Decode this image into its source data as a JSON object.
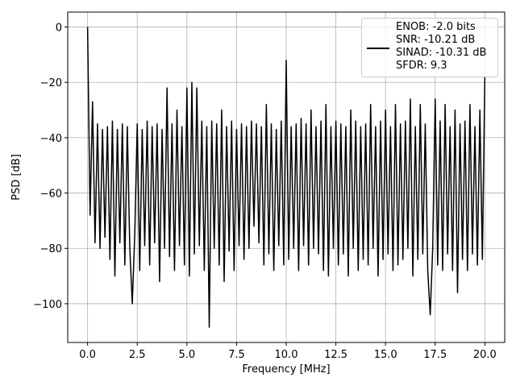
{
  "chart_data": {
    "type": "line",
    "xlabel": "Frequency [MHz]",
    "ylabel": "PSD [dB]",
    "xlim": [
      -1,
      21
    ],
    "ylim": [
      -114,
      5.4
    ],
    "xticks": [
      {
        "value": 0,
        "label": "0.0"
      },
      {
        "value": 2.5,
        "label": "2.5"
      },
      {
        "value": 5,
        "label": "5.0"
      },
      {
        "value": 7.5,
        "label": "7.5"
      },
      {
        "value": 10,
        "label": "10.0"
      },
      {
        "value": 12.5,
        "label": "12.5"
      },
      {
        "value": 15,
        "label": "15.0"
      },
      {
        "value": 17.5,
        "label": "17.5"
      },
      {
        "value": 20,
        "label": "20.0"
      }
    ],
    "yticks": [
      {
        "value": -100,
        "label": "−100"
      },
      {
        "value": -80,
        "label": "−80"
      },
      {
        "value": -60,
        "label": "−60"
      },
      {
        "value": -40,
        "label": "−40"
      },
      {
        "value": -20,
        "label": "−20"
      },
      0
    ],
    "grid": true,
    "legend": "upper right",
    "x": [
      0,
      0.125,
      0.25,
      0.375,
      0.5,
      0.625,
      0.75,
      0.875,
      1,
      1.125,
      1.25,
      1.375,
      1.5,
      1.625,
      1.75,
      1.875,
      2,
      2.125,
      2.25,
      2.375,
      2.5,
      2.625,
      2.75,
      2.875,
      3,
      3.125,
      3.25,
      3.375,
      3.5,
      3.625,
      3.75,
      3.875,
      4,
      4.125,
      4.25,
      4.375,
      4.5,
      4.625,
      4.75,
      4.875,
      5,
      5.125,
      5.25,
      5.375,
      5.5,
      5.625,
      5.75,
      5.875,
      6,
      6.125,
      6.25,
      6.375,
      6.5,
      6.625,
      6.75,
      6.875,
      7,
      7.125,
      7.25,
      7.375,
      7.5,
      7.625,
      7.75,
      7.875,
      8,
      8.125,
      8.25,
      8.375,
      8.5,
      8.625,
      8.75,
      8.875,
      9,
      9.125,
      9.25,
      9.375,
      9.5,
      9.625,
      9.75,
      9.875,
      10,
      10.125,
      10.25,
      10.375,
      10.5,
      10.625,
      10.75,
      10.875,
      11,
      11.125,
      11.25,
      11.375,
      11.5,
      11.625,
      11.75,
      11.875,
      12,
      12.125,
      12.25,
      12.375,
      12.5,
      12.625,
      12.75,
      12.875,
      13,
      13.125,
      13.25,
      13.375,
      13.5,
      13.625,
      13.75,
      13.875,
      14,
      14.125,
      14.25,
      14.375,
      14.5,
      14.625,
      14.75,
      14.875,
      15,
      15.125,
      15.25,
      15.375,
      15.5,
      15.625,
      15.75,
      15.875,
      16,
      16.125,
      16.25,
      16.375,
      16.5,
      16.625,
      16.75,
      16.875,
      17,
      17.125,
      17.25,
      17.375,
      17.5,
      17.625,
      17.75,
      17.875,
      18,
      18.125,
      18.25,
      18.375,
      18.5,
      18.625,
      18.75,
      18.875,
      19,
      19.125,
      19.25,
      19.375,
      19.5,
      19.625,
      19.75,
      19.875,
      20
    ],
    "series": [
      {
        "name": "ENOB: -2.0 bits\nSNR: -10.21 dB\nSINAD: -10.31 dB\nSFDR: 9.3",
        "color": "#000000",
        "values": [
          0,
          -68,
          -27,
          -78,
          -35,
          -80,
          -37,
          -76,
          -36,
          -84,
          -34,
          -90,
          -37,
          -78,
          -35,
          -86,
          -36,
          -80,
          -100,
          -75,
          -35,
          -88,
          -37,
          -79,
          -34,
          -86,
          -36,
          -78,
          -35,
          -92,
          -37,
          -80,
          -22,
          -83,
          -35,
          -88,
          -30,
          -79,
          -36,
          -86,
          -22,
          -90,
          -20,
          -82,
          -22,
          -79,
          -34,
          -88,
          -36,
          -108.5,
          -34,
          -80,
          -35,
          -86,
          -30,
          -92,
          -36,
          -81,
          -34,
          -88,
          -37,
          -79,
          -35,
          -84,
          -36,
          -80,
          -34,
          -72,
          -35,
          -78,
          -36,
          -86,
          -28,
          -82,
          -35,
          -88,
          -37,
          -79,
          -34,
          -86,
          -12,
          -84,
          -36,
          -80,
          -35,
          -88,
          -33,
          -79,
          -35,
          -86,
          -30,
          -80,
          -36,
          -82,
          -34,
          -88,
          -28,
          -90,
          -36,
          -80,
          -34,
          -86,
          -35,
          -82,
          -36,
          -90,
          -30,
          -80,
          -34,
          -88,
          -36,
          -84,
          -35,
          -86,
          -28,
          -80,
          -36,
          -90,
          -34,
          -84,
          -30,
          -82,
          -36,
          -88,
          -28,
          -86,
          -35,
          -84,
          -34,
          -80,
          -26,
          -90,
          -36,
          -84,
          -28,
          -82,
          -35,
          -88,
          -104,
          -80,
          -26,
          -86,
          -34,
          -88,
          -28,
          -82,
          -36,
          -88,
          -30,
          -96,
          -35,
          -84,
          -34,
          -88,
          -28,
          -82,
          -36,
          -86,
          -30,
          -84,
          -18
        ]
      }
    ]
  }
}
